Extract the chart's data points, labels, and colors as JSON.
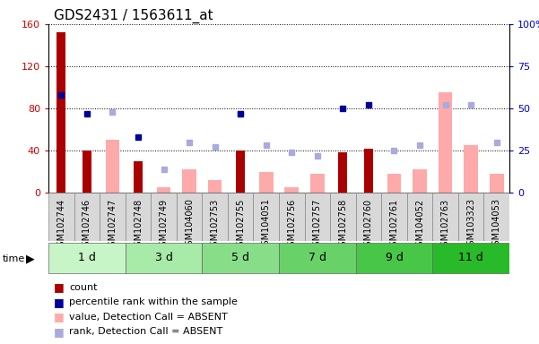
{
  "title": "GDS2431 / 1563611_at",
  "samples": [
    "GSM102744",
    "GSM102746",
    "GSM102747",
    "GSM102748",
    "GSM102749",
    "GSM104060",
    "GSM102753",
    "GSM102755",
    "GSM104051",
    "GSM102756",
    "GSM102757",
    "GSM102758",
    "GSM102760",
    "GSM102761",
    "GSM104052",
    "GSM102763",
    "GSM103323",
    "GSM104053"
  ],
  "groups": [
    {
      "label": "1 d",
      "indices": [
        0,
        1,
        2
      ]
    },
    {
      "label": "3 d",
      "indices": [
        3,
        4,
        5
      ]
    },
    {
      "label": "5 d",
      "indices": [
        6,
        7,
        8
      ]
    },
    {
      "label": "7 d",
      "indices": [
        9,
        10,
        11
      ]
    },
    {
      "label": "9 d",
      "indices": [
        12,
        13,
        14
      ]
    },
    {
      "label": "11 d",
      "indices": [
        15,
        16,
        17
      ]
    }
  ],
  "group_colors": [
    "#c8f5c8",
    "#a8eaa8",
    "#88de88",
    "#68d268",
    "#48c648",
    "#28ba28"
  ],
  "count_values": [
    152,
    40,
    0,
    30,
    0,
    0,
    0,
    40,
    0,
    0,
    0,
    38,
    42,
    0,
    0,
    0,
    0,
    0
  ],
  "percentile_rank_values": [
    58,
    47,
    0,
    33,
    0,
    0,
    0,
    47,
    0,
    0,
    0,
    50,
    52,
    0,
    0,
    0,
    0,
    0
  ],
  "absent_value_bars": [
    0,
    0,
    50,
    0,
    5,
    22,
    12,
    0,
    20,
    5,
    18,
    0,
    0,
    18,
    22,
    95,
    45,
    18
  ],
  "absent_rank_dots": [
    0,
    0,
    48,
    0,
    14,
    30,
    27,
    47,
    28,
    24,
    22,
    0,
    0,
    25,
    28,
    52,
    52,
    30
  ],
  "ylim_left": [
    0,
    160
  ],
  "ylim_right": [
    0,
    100
  ],
  "yticks_left": [
    0,
    40,
    80,
    120,
    160
  ],
  "yticks_right": [
    0,
    25,
    50,
    75,
    100
  ],
  "left_tick_color": "#cc0000",
  "right_tick_color": "#0000cc",
  "count_color": "#aa0000",
  "percentile_color": "#000099",
  "absent_value_color": "#ffaaaa",
  "absent_rank_color": "#aaaadd",
  "bg_color": "#ffffff",
  "tick_label_fontsize": 7,
  "title_fontsize": 11,
  "legend_fontsize": 8
}
